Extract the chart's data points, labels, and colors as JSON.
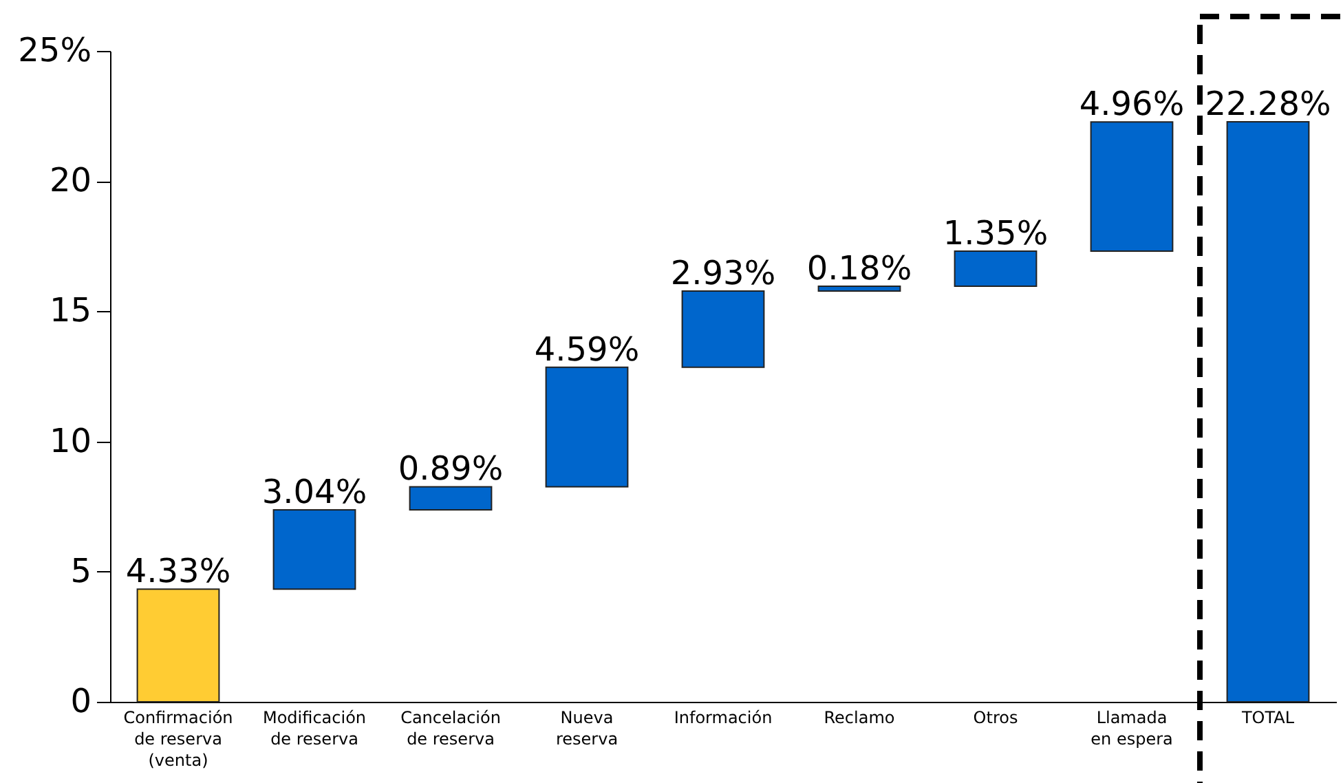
{
  "chart_data": {
    "type": "bar",
    "categories": [
      "Confirmación\nde reserva\n(venta)",
      "Modificación\nde reserva",
      "Cancelación\nde reserva",
      "Nueva\nreserva",
      "Información",
      "Reclamo",
      "Otros",
      "Llamada\nen espera",
      "TOTAL"
    ],
    "values": [
      4.33,
      3.04,
      0.89,
      4.59,
      2.93,
      0.18,
      1.35,
      4.96,
      22.28
    ],
    "base": [
      0,
      4.33,
      7.37,
      8.26,
      12.85,
      15.78,
      15.96,
      17.31,
      0
    ],
    "colors": [
      "#ffcc33",
      "#0066cc",
      "#0066cc",
      "#0066cc",
      "#0066cc",
      "#0066cc",
      "#0066cc",
      "#0066cc",
      "#0066cc"
    ],
    "value_labels": [
      "4.33%",
      "3.04%",
      "0.89%",
      "4.59%",
      "2.93%",
      "0.18%",
      "1.35%",
      "4.96%",
      "22.28%"
    ],
    "ylim": [
      0,
      25
    ],
    "yticks": [
      0,
      5,
      10,
      15,
      20,
      {
        "value": 25,
        "label": "25%"
      }
    ],
    "grid": false
  }
}
